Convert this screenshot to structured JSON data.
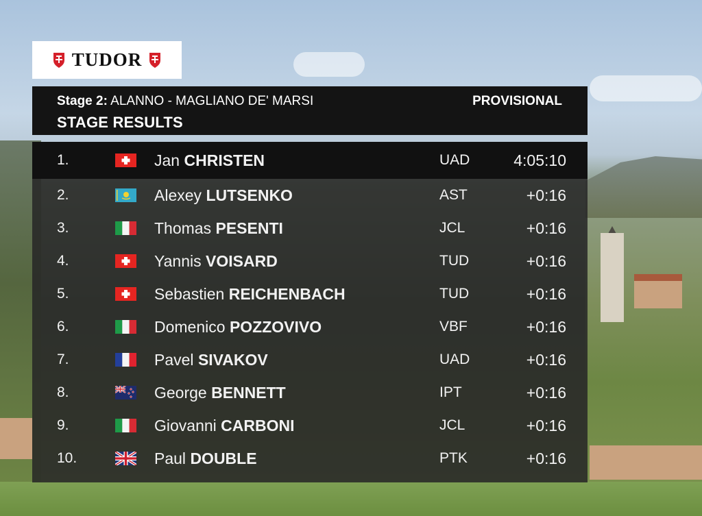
{
  "brand": {
    "name": "TUDOR",
    "shield_color": "#d5202a"
  },
  "header": {
    "stage_label": "Stage 2:",
    "route": "ALANNO - MAGLIANO DE' MARSI",
    "subtitle": "STAGE RESULTS",
    "status": "PROVISIONAL"
  },
  "results": [
    {
      "pos": "1.",
      "first": "Jan",
      "last": "CHRISTEN",
      "flag": "switzerland",
      "team": "UAD",
      "time": "4:05:10"
    },
    {
      "pos": "2.",
      "first": "Alexey",
      "last": "LUTSENKO",
      "flag": "kazakhstan",
      "team": "AST",
      "time": "+0:16"
    },
    {
      "pos": "3.",
      "first": "Thomas",
      "last": "PESENTI",
      "flag": "italy",
      "team": "JCL",
      "time": "+0:16"
    },
    {
      "pos": "4.",
      "first": "Yannis",
      "last": "VOISARD",
      "flag": "switzerland",
      "team": "TUD",
      "time": "+0:16"
    },
    {
      "pos": "5.",
      "first": "Sebastien",
      "last": "REICHENBACH",
      "flag": "switzerland",
      "team": "TUD",
      "time": "+0:16"
    },
    {
      "pos": "6.",
      "first": "Domenico",
      "last": "POZZOVIVO",
      "flag": "italy",
      "team": "VBF",
      "time": "+0:16"
    },
    {
      "pos": "7.",
      "first": "Pavel",
      "last": "SIVAKOV",
      "flag": "france",
      "team": "UAD",
      "time": "+0:16"
    },
    {
      "pos": "8.",
      "first": "George",
      "last": "BENNETT",
      "flag": "new-zealand",
      "team": "IPT",
      "time": "+0:16"
    },
    {
      "pos": "9.",
      "first": "Giovanni",
      "last": "CARBONI",
      "flag": "italy",
      "team": "JCL",
      "time": "+0:16"
    },
    {
      "pos": "10.",
      "first": "Paul",
      "last": "DOUBLE",
      "flag": "united-kingdom",
      "team": "PTK",
      "time": "+0:16"
    }
  ]
}
